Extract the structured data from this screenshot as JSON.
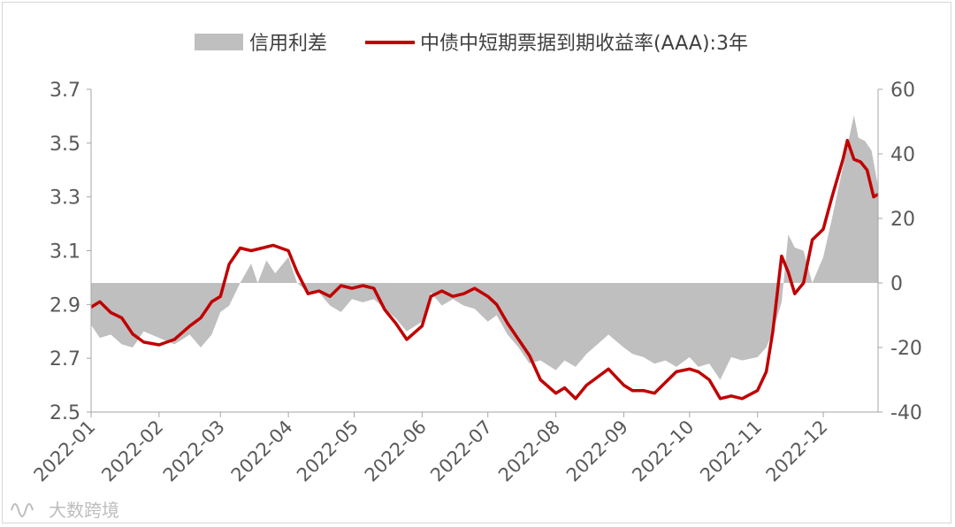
{
  "chart_data": {
    "type": "line",
    "legend_placement": "top-center",
    "grid": false,
    "x_tick_labels": [
      "2022-01",
      "2022-02",
      "2022-03",
      "2022-04",
      "2022-05",
      "2022-06",
      "2022-07",
      "2022-08",
      "2022-09",
      "2022-10",
      "2022-11",
      "2022-12"
    ],
    "left_axis": {
      "ylim": [
        2.5,
        3.7
      ],
      "ticks": [
        "2.5",
        "2.7",
        "2.9",
        "3.1",
        "3.3",
        "3.5",
        "3.7"
      ]
    },
    "right_axis": {
      "ylim": [
        -40,
        60
      ],
      "ticks": [
        "-40",
        "-20",
        "0",
        "20",
        "40",
        "60"
      ]
    },
    "series": [
      {
        "name": "信用利差",
        "kind": "area",
        "axis": "right",
        "color": "#bfbfbf",
        "points": [
          [
            "2022-01-01",
            -13
          ],
          [
            "2022-01-05",
            -17
          ],
          [
            "2022-01-10",
            -16
          ],
          [
            "2022-01-15",
            -19
          ],
          [
            "2022-01-20",
            -20
          ],
          [
            "2022-01-25",
            -15
          ],
          [
            "2022-02-01",
            -17
          ],
          [
            "2022-02-08",
            -19
          ],
          [
            "2022-02-15",
            -16
          ],
          [
            "2022-02-20",
            -20
          ],
          [
            "2022-02-25",
            -16
          ],
          [
            "2022-03-01",
            -9
          ],
          [
            "2022-03-05",
            -7
          ],
          [
            "2022-03-10",
            0
          ],
          [
            "2022-03-15",
            6
          ],
          [
            "2022-03-18",
            0
          ],
          [
            "2022-03-22",
            7
          ],
          [
            "2022-03-26",
            3
          ],
          [
            "2022-04-01",
            8
          ],
          [
            "2022-04-05",
            0
          ],
          [
            "2022-04-10",
            -3
          ],
          [
            "2022-04-15",
            -3
          ],
          [
            "2022-04-20",
            -7
          ],
          [
            "2022-04-25",
            -9
          ],
          [
            "2022-04-30",
            -5
          ],
          [
            "2022-05-05",
            -6
          ],
          [
            "2022-05-10",
            -5
          ],
          [
            "2022-05-15",
            -8
          ],
          [
            "2022-05-20",
            -11
          ],
          [
            "2022-05-25",
            -15
          ],
          [
            "2022-06-01",
            -12
          ],
          [
            "2022-06-05",
            -3
          ],
          [
            "2022-06-10",
            -7
          ],
          [
            "2022-06-15",
            -5
          ],
          [
            "2022-06-20",
            -7
          ],
          [
            "2022-06-25",
            -8
          ],
          [
            "2022-07-01",
            -12
          ],
          [
            "2022-07-05",
            -10
          ],
          [
            "2022-07-10",
            -16
          ],
          [
            "2022-07-15",
            -20
          ],
          [
            "2022-07-20",
            -25
          ],
          [
            "2022-07-25",
            -24
          ],
          [
            "2022-08-01",
            -27
          ],
          [
            "2022-08-05",
            -24
          ],
          [
            "2022-08-10",
            -26
          ],
          [
            "2022-08-15",
            -22
          ],
          [
            "2022-08-20",
            -19
          ],
          [
            "2022-08-25",
            -16
          ],
          [
            "2022-09-01",
            -20
          ],
          [
            "2022-09-05",
            -22
          ],
          [
            "2022-09-10",
            -23
          ],
          [
            "2022-09-15",
            -25
          ],
          [
            "2022-09-20",
            -24
          ],
          [
            "2022-09-25",
            -26
          ],
          [
            "2022-10-01",
            -23
          ],
          [
            "2022-10-05",
            -26
          ],
          [
            "2022-10-10",
            -25
          ],
          [
            "2022-10-15",
            -30
          ],
          [
            "2022-10-20",
            -23
          ],
          [
            "2022-10-25",
            -24
          ],
          [
            "2022-11-01",
            -23
          ],
          [
            "2022-11-05",
            -20
          ],
          [
            "2022-11-08",
            -15
          ],
          [
            "2022-11-12",
            -6
          ],
          [
            "2022-11-15",
            15
          ],
          [
            "2022-11-18",
            11
          ],
          [
            "2022-11-22",
            10
          ],
          [
            "2022-11-26",
            0
          ],
          [
            "2022-12-01",
            8
          ],
          [
            "2022-12-05",
            20
          ],
          [
            "2022-12-10",
            36
          ],
          [
            "2022-12-15",
            52
          ],
          [
            "2022-12-17",
            45
          ],
          [
            "2022-12-20",
            44
          ],
          [
            "2022-12-23",
            41
          ],
          [
            "2022-12-26",
            30
          ]
        ]
      },
      {
        "name": "中债中短期票据到期收益率(AAA):3年",
        "kind": "line",
        "axis": "left",
        "color": "#c00000",
        "points": [
          [
            "2022-01-01",
            2.89
          ],
          [
            "2022-01-05",
            2.91
          ],
          [
            "2022-01-10",
            2.87
          ],
          [
            "2022-01-15",
            2.85
          ],
          [
            "2022-01-20",
            2.79
          ],
          [
            "2022-01-25",
            2.76
          ],
          [
            "2022-02-01",
            2.75
          ],
          [
            "2022-02-08",
            2.77
          ],
          [
            "2022-02-15",
            2.82
          ],
          [
            "2022-02-20",
            2.85
          ],
          [
            "2022-02-25",
            2.91
          ],
          [
            "2022-03-01",
            2.93
          ],
          [
            "2022-03-05",
            3.05
          ],
          [
            "2022-03-10",
            3.11
          ],
          [
            "2022-03-15",
            3.1
          ],
          [
            "2022-03-20",
            3.11
          ],
          [
            "2022-03-25",
            3.12
          ],
          [
            "2022-04-01",
            3.1
          ],
          [
            "2022-04-05",
            3.02
          ],
          [
            "2022-04-10",
            2.94
          ],
          [
            "2022-04-15",
            2.95
          ],
          [
            "2022-04-20",
            2.93
          ],
          [
            "2022-04-25",
            2.97
          ],
          [
            "2022-04-30",
            2.96
          ],
          [
            "2022-05-05",
            2.97
          ],
          [
            "2022-05-10",
            2.96
          ],
          [
            "2022-05-15",
            2.88
          ],
          [
            "2022-05-20",
            2.83
          ],
          [
            "2022-05-25",
            2.77
          ],
          [
            "2022-06-01",
            2.82
          ],
          [
            "2022-06-05",
            2.93
          ],
          [
            "2022-06-10",
            2.95
          ],
          [
            "2022-06-15",
            2.93
          ],
          [
            "2022-06-20",
            2.94
          ],
          [
            "2022-06-25",
            2.96
          ],
          [
            "2022-07-01",
            2.93
          ],
          [
            "2022-07-05",
            2.9
          ],
          [
            "2022-07-10",
            2.83
          ],
          [
            "2022-07-15",
            2.77
          ],
          [
            "2022-07-20",
            2.71
          ],
          [
            "2022-07-25",
            2.62
          ],
          [
            "2022-08-01",
            2.57
          ],
          [
            "2022-08-05",
            2.59
          ],
          [
            "2022-08-10",
            2.55
          ],
          [
            "2022-08-15",
            2.6
          ],
          [
            "2022-08-20",
            2.63
          ],
          [
            "2022-08-25",
            2.66
          ],
          [
            "2022-09-01",
            2.6
          ],
          [
            "2022-09-05",
            2.58
          ],
          [
            "2022-09-10",
            2.58
          ],
          [
            "2022-09-15",
            2.57
          ],
          [
            "2022-09-20",
            2.61
          ],
          [
            "2022-09-25",
            2.65
          ],
          [
            "2022-10-01",
            2.66
          ],
          [
            "2022-10-05",
            2.65
          ],
          [
            "2022-10-10",
            2.62
          ],
          [
            "2022-10-15",
            2.55
          ],
          [
            "2022-10-20",
            2.56
          ],
          [
            "2022-10-25",
            2.55
          ],
          [
            "2022-11-01",
            2.58
          ],
          [
            "2022-11-05",
            2.65
          ],
          [
            "2022-11-08",
            2.8
          ],
          [
            "2022-11-12",
            3.08
          ],
          [
            "2022-11-15",
            3.02
          ],
          [
            "2022-11-18",
            2.94
          ],
          [
            "2022-11-22",
            2.98
          ],
          [
            "2022-11-26",
            3.14
          ],
          [
            "2022-12-01",
            3.18
          ],
          [
            "2022-12-05",
            3.3
          ],
          [
            "2022-12-10",
            3.44
          ],
          [
            "2022-12-12",
            3.51
          ],
          [
            "2022-12-15",
            3.44
          ],
          [
            "2022-12-18",
            3.43
          ],
          [
            "2022-12-21",
            3.4
          ],
          [
            "2022-12-24",
            3.3
          ],
          [
            "2022-12-26",
            3.31
          ]
        ]
      }
    ]
  },
  "watermark": {
    "text": "大数跨境",
    "icon": "sine-wave-logo-icon"
  }
}
